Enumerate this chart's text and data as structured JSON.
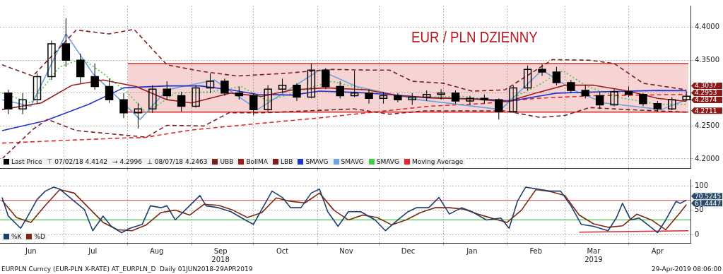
{
  "chart_data": [
    {
      "type": "candlestick",
      "title": "EUR / PLN DZIENNY",
      "xlim": [
        "2018-05-31",
        "2019-05-01"
      ],
      "xticks": [
        {
          "value": "2018-07-01",
          "label": null
        },
        {
          "value": "2018-08-01",
          "label": null
        },
        {
          "value": "2018-09-01",
          "label": null
        },
        {
          "value": "2018-10-01",
          "label": null
        },
        {
          "value": "2018-11-01",
          "label": null
        },
        {
          "value": "2018-12-01",
          "label": null
        },
        {
          "value": "2019-01-01",
          "label": null
        },
        {
          "value": "2019-02-01",
          "label": null
        },
        {
          "value": "2019-03-01",
          "label": null
        },
        {
          "value": "2019-04-01",
          "label": null
        }
      ],
      "ylim": [
        4.186,
        4.433
      ],
      "yticks": [
        {
          "value": 4.2,
          "label": "4.2000"
        },
        {
          "value": 4.25,
          "label": "4.2500"
        },
        {
          "value": 4.3,
          "label": null
        },
        {
          "value": 4.35,
          "label": "4.3500"
        },
        {
          "value": 4.4,
          "label": "4.4000"
        }
      ],
      "tick_labels": "y",
      "grid": true,
      "legend": "bottom left",
      "series": [
        {
          "name": "Last Price",
          "type": "candlestick",
          "color": "#000000",
          "x": [
            "2018-06-04",
            "2018-06-11",
            "2018-06-18",
            "2018-06-25",
            "2018-07-02",
            "2018-07-09",
            "2018-07-16",
            "2018-07-23",
            "2018-07-30",
            "2018-08-06",
            "2018-08-13",
            "2018-08-20",
            "2018-08-27",
            "2018-09-03",
            "2018-09-10",
            "2018-09-17",
            "2018-09-24",
            "2018-10-01",
            "2018-10-08",
            "2018-10-15",
            "2018-10-22",
            "2018-10-29",
            "2018-11-05",
            "2018-11-12",
            "2018-11-19",
            "2018-11-26",
            "2018-12-03",
            "2018-12-10",
            "2018-12-17",
            "2018-12-24",
            "2018-12-31",
            "2019-01-07",
            "2019-01-14",
            "2019-01-21",
            "2019-01-28",
            "2019-02-04",
            "2019-02-11",
            "2019-02-18",
            "2019-02-25",
            "2019-03-04",
            "2019-03-11",
            "2019-03-18",
            "2019-03-25",
            "2019-04-01",
            "2019-04-08",
            "2019-04-15",
            "2019-04-22",
            "2019-04-29"
          ],
          "ohlc": [
            [
              4.3,
              4.305,
              4.268,
              4.276
            ],
            [
              4.276,
              4.3,
              4.268,
              4.29
            ],
            [
              4.29,
              4.33,
              4.285,
              4.325
            ],
            [
              4.325,
              4.38,
              4.32,
              4.375
            ],
            [
              4.375,
              4.4142,
              4.34,
              4.35
            ],
            [
              4.35,
              4.36,
              4.315,
              4.325
            ],
            [
              4.325,
              4.345,
              4.305,
              4.31
            ],
            [
              4.31,
              4.322,
              4.285,
              4.29
            ],
            [
              4.29,
              4.3,
              4.262,
              4.27
            ],
            [
              4.27,
              4.285,
              4.2463,
              4.276
            ],
            [
              4.276,
              4.312,
              4.27,
              4.306
            ],
            [
              4.306,
              4.318,
              4.29,
              4.296
            ],
            [
              4.296,
              4.302,
              4.272,
              4.28
            ],
            [
              4.28,
              4.312,
              4.278,
              4.308
            ],
            [
              4.308,
              4.33,
              4.3,
              4.318
            ],
            [
              4.318,
              4.322,
              4.296,
              4.3
            ],
            [
              4.3,
              4.31,
              4.29,
              4.296
            ],
            [
              4.296,
              4.3,
              4.266,
              4.275
            ],
            [
              4.275,
              4.312,
              4.272,
              4.306
            ],
            [
              4.306,
              4.322,
              4.3,
              4.312
            ],
            [
              4.312,
              4.315,
              4.288,
              4.294
            ],
            [
              4.294,
              4.345,
              4.292,
              4.335
            ],
            [
              4.335,
              4.338,
              4.306,
              4.31
            ],
            [
              4.31,
              4.318,
              4.292,
              4.296
            ],
            [
              4.296,
              4.334,
              4.294,
              4.3
            ],
            [
              4.3,
              4.306,
              4.284,
              4.292
            ],
            [
              4.292,
              4.302,
              4.284,
              4.296
            ],
            [
              4.296,
              4.3,
              4.286,
              4.29
            ],
            [
              4.29,
              4.3,
              4.282,
              4.294
            ],
            [
              4.294,
              4.304,
              4.288,
              4.298
            ],
            [
              4.298,
              4.306,
              4.29,
              4.3
            ],
            [
              4.3,
              4.304,
              4.284,
              4.288
            ],
            [
              4.288,
              4.296,
              4.282,
              4.292
            ],
            [
              4.292,
              4.298,
              4.284,
              4.29
            ],
            [
              4.29,
              4.292,
              4.26,
              4.272
            ],
            [
              4.272,
              4.312,
              4.27,
              4.308
            ],
            [
              4.308,
              4.342,
              4.304,
              4.336
            ],
            [
              4.336,
              4.344,
              4.326,
              4.332
            ],
            [
              4.332,
              4.34,
              4.312,
              4.316
            ],
            [
              4.316,
              4.32,
              4.3,
              4.304
            ],
            [
              4.304,
              4.312,
              4.292,
              4.296
            ],
            [
              4.296,
              4.302,
              4.276,
              4.282
            ],
            [
              4.282,
              4.306,
              4.28,
              4.302
            ],
            [
              4.302,
              4.31,
              4.294,
              4.298
            ],
            [
              4.298,
              4.3,
              4.28,
              4.284
            ],
            [
              4.284,
              4.288,
              4.272,
              4.276
            ],
            [
              4.276,
              4.294,
              4.274,
              4.29
            ],
            [
              4.29,
              4.303,
              4.288,
              4.2953
            ]
          ]
        },
        {
          "name": "UBB",
          "type": "line",
          "color": "#7a1f1f",
          "line_style": "dashed",
          "x": [
            "2018-06-01",
            "2018-06-16",
            "2018-07-07",
            "2018-07-23",
            "2018-08-04",
            "2018-08-20",
            "2018-09-06",
            "2018-09-23",
            "2018-10-16",
            "2018-11-08",
            "2018-11-26",
            "2018-12-06",
            "2018-12-17",
            "2019-01-01",
            "2019-01-15",
            "2019-01-31",
            "2019-02-23",
            "2019-03-13",
            "2019-03-25",
            "2019-04-08",
            "2019-04-29"
          ],
          "values": [
            4.343,
            4.326,
            4.396,
            4.39,
            4.397,
            4.343,
            4.333,
            4.326,
            4.33,
            4.336,
            4.335,
            4.335,
            4.318,
            4.315,
            4.303,
            4.305,
            4.351,
            4.35,
            4.345,
            4.315,
            4.305
          ]
        },
        {
          "name": "BollMA",
          "type": "line",
          "color": "#9b1c1c",
          "line_style": "solid",
          "x": [
            "2018-06-01",
            "2018-06-20",
            "2018-07-05",
            "2018-07-20",
            "2018-08-05",
            "2018-08-20",
            "2018-09-01",
            "2018-09-20",
            "2018-10-05",
            "2018-10-20",
            "2018-11-05",
            "2018-11-25",
            "2018-12-10",
            "2018-12-25",
            "2019-01-15",
            "2019-02-01",
            "2019-02-15",
            "2019-03-01",
            "2019-03-15",
            "2019-04-01",
            "2019-04-15",
            "2019-04-29"
          ],
          "values": [
            4.275,
            4.285,
            4.312,
            4.32,
            4.31,
            4.29,
            4.285,
            4.3,
            4.295,
            4.305,
            4.308,
            4.305,
            4.296,
            4.293,
            4.291,
            4.287,
            4.3,
            4.312,
            4.312,
            4.303,
            4.292,
            4.2874
          ]
        },
        {
          "name": "LBB",
          "type": "line",
          "color": "#7a1f1f",
          "line_style": "dashed",
          "x": [
            "2018-06-01",
            "2018-06-16",
            "2018-06-23",
            "2018-07-07",
            "2018-08-10",
            "2018-08-20",
            "2018-09-07",
            "2018-09-19",
            "2018-10-05",
            "2018-10-27",
            "2018-11-19",
            "2018-12-06",
            "2018-12-23",
            "2019-01-31",
            "2019-02-17",
            "2019-03-01",
            "2019-03-13",
            "2019-03-31",
            "2019-04-29"
          ],
          "values": [
            4.2,
            4.245,
            4.26,
            4.243,
            4.233,
            4.251,
            4.25,
            4.27,
            4.27,
            4.273,
            4.276,
            4.268,
            4.273,
            4.273,
            4.263,
            4.266,
            4.278,
            4.275,
            4.2711
          ]
        },
        {
          "name": "SMAVG",
          "type": "line",
          "color": "#2233cc",
          "line_style": "solid",
          "x": [
            "2018-06-01",
            "2018-06-22",
            "2018-07-13",
            "2018-07-30",
            "2018-08-20",
            "2018-09-05",
            "2018-09-20",
            "2018-10-03",
            "2018-10-20",
            "2018-11-02",
            "2018-11-20",
            "2018-12-05",
            "2018-12-25",
            "2019-01-20",
            "2019-02-03",
            "2019-02-25",
            "2019-03-18",
            "2019-04-15",
            "2019-04-29"
          ],
          "values": [
            4.243,
            4.258,
            4.283,
            4.308,
            4.311,
            4.311,
            4.305,
            4.298,
            4.297,
            4.303,
            4.301,
            4.298,
            4.293,
            4.291,
            4.288,
            4.3,
            4.302,
            4.304,
            4.3037
          ]
        },
        {
          "name": "SMAVG",
          "type": "line",
          "color": "#6fa3dc",
          "line_style": "solid",
          "x": [
            "2018-06-01",
            "2018-06-15",
            "2018-07-02",
            "2018-07-15",
            "2018-08-07",
            "2018-08-20",
            "2018-09-12",
            "2018-10-03",
            "2018-11-02",
            "2018-11-20",
            "2018-12-20",
            "2019-01-29",
            "2019-02-18",
            "2019-03-05",
            "2019-03-20",
            "2019-04-17",
            "2019-04-29"
          ],
          "values": [
            4.29,
            4.28,
            4.39,
            4.33,
            4.26,
            4.305,
            4.32,
            4.275,
            4.335,
            4.31,
            4.29,
            4.275,
            4.335,
            4.305,
            4.285,
            4.275,
            4.29
          ]
        },
        {
          "name": "SMAVG",
          "type": "line",
          "color": "#44cc44",
          "line_style": "dotted",
          "x": [
            "2018-06-01",
            "2018-06-15",
            "2018-06-29",
            "2018-07-10",
            "2018-07-20",
            "2018-08-01",
            "2018-08-10",
            "2018-08-24",
            "2018-09-10",
            "2018-09-25",
            "2018-10-08",
            "2018-10-25",
            "2018-11-08",
            "2018-11-25",
            "2018-12-15",
            "2019-01-10",
            "2019-02-01",
            "2019-02-15",
            "2019-02-28",
            "2019-03-12",
            "2019-03-28",
            "2019-04-15",
            "2019-04-29"
          ],
          "values": [
            4.3,
            4.285,
            4.34,
            4.352,
            4.33,
            4.3,
            4.27,
            4.3,
            4.302,
            4.31,
            4.288,
            4.305,
            4.318,
            4.305,
            4.293,
            4.295,
            4.288,
            4.31,
            4.334,
            4.31,
            4.293,
            4.283,
            4.283
          ]
        },
        {
          "name": "Moving Average",
          "type": "line",
          "color": "#dd2b2b",
          "line_style": "dashed",
          "x": [
            "2018-06-01",
            "2018-07-01",
            "2018-08-01",
            "2018-08-08",
            "2018-09-01",
            "2018-10-01",
            "2018-11-01",
            "2018-12-01",
            "2018-12-25",
            "2019-01-20",
            "2019-02-15",
            "2019-03-15",
            "2019-04-29"
          ],
          "values": [
            4.224,
            4.228,
            4.232,
            4.232,
            4.244,
            4.253,
            4.262,
            4.272,
            4.28,
            4.284,
            4.292,
            4.296,
            4.298
          ]
        },
        {
          "type": "line",
          "color": "#d42a2a",
          "line_style": "solid",
          "x": [
            "2018-08-01",
            "2019-04-30"
          ],
          "values": [
            4.345,
            4.345
          ],
          "lower": [
            4.2711,
            4.2711
          ],
          "upper": [
            4.345,
            4.345
          ]
        },
        {
          "type": "line",
          "color": "#d42a2a",
          "line_style": "solid",
          "x": [
            "2018-08-01",
            "2019-04-30"
          ],
          "values": [
            4.2711,
            4.2711
          ]
        }
      ],
      "annotations": [
        "⊤ 07/02/18 4.4142",
        "→ 4.2996",
        "⊥ 08/07/18 4.2463",
        {
          "text": "4.3037",
          "x": "2019-04-29",
          "y": 4.3037
        },
        {
          "text": "4.2953",
          "x": "2019-04-29",
          "y": 4.2953
        },
        {
          "text": "4.2874",
          "x": "2019-04-29",
          "y": 4.2874
        },
        {
          "text": "4.2711",
          "x": "2019-04-29",
          "y": 4.2711
        }
      ]
    },
    {
      "type": "line",
      "xlim": [
        "2018-05-31",
        "2019-05-01"
      ],
      "xticks": [
        {
          "value": "2018-06-15",
          "label": "Jun"
        },
        {
          "value": "2018-07-01",
          "label": null
        },
        {
          "value": "2018-07-15",
          "label": "Jul"
        },
        {
          "value": "2018-08-01",
          "label": null
        },
        {
          "value": "2018-08-15",
          "label": "Aug"
        },
        {
          "value": "2018-09-01",
          "label": null
        },
        {
          "value": "2018-09-15",
          "label": "Sep\n2018"
        },
        {
          "value": "2018-10-01",
          "label": null
        },
        {
          "value": "2018-10-15",
          "label": "Oct"
        },
        {
          "value": "2018-11-01",
          "label": null
        },
        {
          "value": "2018-11-15",
          "label": "Nov"
        },
        {
          "value": "2018-12-01",
          "label": null
        },
        {
          "value": "2018-12-15",
          "label": "Dec"
        },
        {
          "value": "2019-01-01",
          "label": null
        },
        {
          "value": "2019-01-15",
          "label": "Jan"
        },
        {
          "value": "2019-02-01",
          "label": null
        },
        {
          "value": "2019-02-15",
          "label": "Feb"
        },
        {
          "value": "2019-03-01",
          "label": null
        },
        {
          "value": "2019-03-15",
          "label": "Mar\n2019"
        },
        {
          "value": "2019-04-01",
          "label": null
        },
        {
          "value": "2019-04-15",
          "label": "Apr"
        }
      ],
      "ylim": [
        -17,
        113
      ],
      "yticks": [
        0,
        50,
        100
      ],
      "grid": true,
      "legend": "bottom left",
      "ref_lines": [
        {
          "axis": "y",
          "value": 70,
          "color": "#c84040"
        },
        {
          "axis": "y",
          "value": 30,
          "color": "#50c050"
        }
      ],
      "series": [
        {
          "name": "%K",
          "type": "line",
          "color": "#1f3f6f",
          "line_style": "solid",
          "x": [
            "2018-06-01",
            "2018-06-04",
            "2018-06-10",
            "2018-06-13",
            "2018-06-18",
            "2018-06-22",
            "2018-06-26",
            "2018-06-29",
            "2018-07-05",
            "2018-07-11",
            "2018-07-15",
            "2018-07-20",
            "2018-07-24",
            "2018-07-29",
            "2018-08-02",
            "2018-08-08",
            "2018-08-12",
            "2018-08-17",
            "2018-08-20",
            "2018-08-24",
            "2018-08-30",
            "2018-09-05",
            "2018-09-08",
            "2018-09-14",
            "2018-09-20",
            "2018-09-27",
            "2018-10-01",
            "2018-10-06",
            "2018-10-10",
            "2018-10-15",
            "2018-10-19",
            "2018-10-24",
            "2018-10-29",
            "2018-11-02",
            "2018-11-06",
            "2018-11-11",
            "2018-11-16",
            "2018-11-22",
            "2018-11-29",
            "2018-12-04",
            "2018-12-10",
            "2018-12-15",
            "2018-12-19",
            "2018-12-25",
            "2018-12-30",
            "2019-01-04",
            "2019-01-10",
            "2019-01-15",
            "2019-01-22",
            "2019-01-29",
            "2019-02-02",
            "2019-02-06",
            "2019-02-10",
            "2019-02-16",
            "2019-02-22",
            "2019-02-27",
            "2019-03-04",
            "2019-03-09",
            "2019-03-15",
            "2019-03-22",
            "2019-03-26",
            "2019-03-29",
            "2019-04-02",
            "2019-04-06",
            "2019-04-10",
            "2019-04-15",
            "2019-04-19",
            "2019-04-24",
            "2019-04-26",
            "2019-04-29"
          ],
          "values": [
            76,
            38,
            13,
            34,
            72,
            89,
            97,
            93,
            72,
            51,
            8,
            38,
            17,
            4,
            13,
            21,
            59,
            55,
            59,
            30,
            55,
            80,
            59,
            55,
            47,
            30,
            21,
            59,
            89,
            76,
            55,
            55,
            85,
            93,
            47,
            17,
            47,
            47,
            30,
            8,
            30,
            47,
            55,
            55,
            76,
            42,
            55,
            47,
            30,
            34,
            13,
            68,
            97,
            93,
            89,
            89,
            59,
            21,
            17,
            8,
            34,
            64,
            30,
            34,
            21,
            4,
            30,
            68,
            64,
            70.5245
          ]
        },
        {
          "name": "%D",
          "type": "line",
          "color": "#7a2a10",
          "line_style": "solid",
          "x": [
            "2018-06-01",
            "2018-06-08",
            "2018-06-15",
            "2018-06-22",
            "2018-06-29",
            "2018-07-06",
            "2018-07-13",
            "2018-07-20",
            "2018-07-27",
            "2018-08-03",
            "2018-08-10",
            "2018-08-17",
            "2018-08-24",
            "2018-08-31",
            "2018-09-07",
            "2018-09-14",
            "2018-09-21",
            "2018-09-28",
            "2018-10-05",
            "2018-10-12",
            "2018-10-19",
            "2018-10-26",
            "2018-11-02",
            "2018-11-09",
            "2018-11-16",
            "2018-11-23",
            "2018-11-30",
            "2018-12-07",
            "2018-12-14",
            "2018-12-21",
            "2018-12-28",
            "2019-01-04",
            "2019-01-11",
            "2019-01-18",
            "2019-01-25",
            "2019-02-01",
            "2019-02-08",
            "2019-02-15",
            "2019-02-22",
            "2019-03-01",
            "2019-03-08",
            "2019-03-15",
            "2019-03-22",
            "2019-03-29",
            "2019-04-05",
            "2019-04-12",
            "2019-04-19",
            "2019-04-26",
            "2019-04-29"
          ],
          "values": [
            70,
            35,
            25,
            60,
            92,
            85,
            55,
            25,
            10,
            8,
            20,
            45,
            50,
            40,
            62,
            60,
            50,
            35,
            45,
            75,
            68,
            65,
            85,
            50,
            30,
            40,
            35,
            20,
            30,
            45,
            55,
            55,
            52,
            42,
            33,
            25,
            50,
            92,
            88,
            80,
            40,
            22,
            15,
            18,
            42,
            30,
            10,
            45,
            61.4447
          ]
        },
        {
          "type": "line",
          "color": "#d42a2a",
          "line_style": "solid",
          "x": [
            "2019-03-08",
            "2019-04-30"
          ],
          "values": [
            5,
            8
          ]
        }
      ],
      "annotations": [
        {
          "text": "70.5245",
          "x": "2019-04-29",
          "y": 70.5245
        },
        {
          "text": "61.4447",
          "x": "2019-04-29",
          "y": 61.4447
        },
        "EURPLN Curncy (EUR-PLN X-RATE) AT_EURPLN_D  Daily 01JUN2018-29APR2019",
        "29-Apr-2019 08:06:00"
      ]
    }
  ]
}
